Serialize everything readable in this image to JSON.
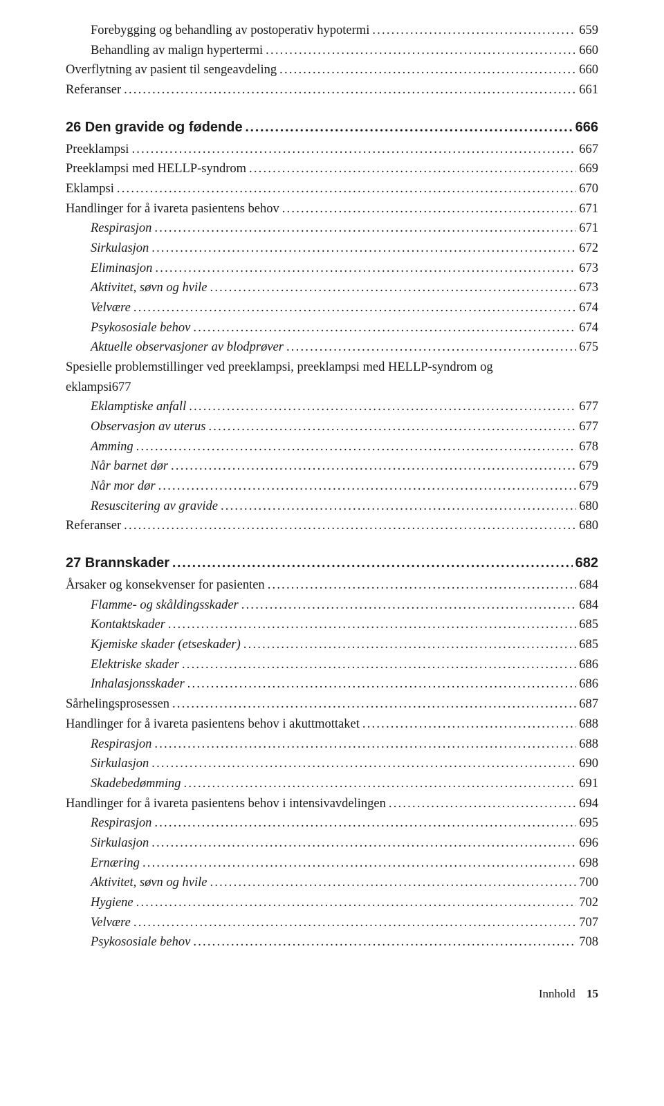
{
  "entries": [
    {
      "text": "Forebygging og behandling av postoperativ hypotermi",
      "page": "659",
      "level": 1,
      "italic": false
    },
    {
      "text": "Behandling av malign hypertermi",
      "page": "660",
      "level": 1,
      "italic": false
    },
    {
      "text": "Overflytning av pasient til sengeavdeling",
      "page": "660",
      "level": 0,
      "italic": false
    },
    {
      "text": "Referanser",
      "page": "661",
      "level": 0,
      "italic": false
    },
    {
      "text": "26 Den gravide og fødende",
      "page": "666",
      "level": 0,
      "chapter": true
    },
    {
      "text": "Preeklampsi",
      "page": "667",
      "level": 0,
      "italic": false
    },
    {
      "text": "Preeklampsi med HELLP-syndrom",
      "page": "669",
      "level": 0,
      "italic": false
    },
    {
      "text": "Eklampsi",
      "page": "670",
      "level": 0,
      "italic": false
    },
    {
      "text": "Handlinger for å ivareta pasientens behov",
      "page": "671",
      "level": 0,
      "italic": false
    },
    {
      "text": "Respirasjon",
      "page": "671",
      "level": 1,
      "italic": true
    },
    {
      "text": "Sirkulasjon",
      "page": "672",
      "level": 1,
      "italic": true
    },
    {
      "text": "Eliminasjon",
      "page": "673",
      "level": 1,
      "italic": true
    },
    {
      "text": "Aktivitet, søvn og hvile",
      "page": "673",
      "level": 1,
      "italic": true
    },
    {
      "text": "Velvære",
      "page": "674",
      "level": 1,
      "italic": true
    },
    {
      "text": "Psykososiale behov",
      "page": "674",
      "level": 1,
      "italic": true
    },
    {
      "text": "Aktuelle observasjoner av blodprøver",
      "page": "675",
      "level": 1,
      "italic": true
    },
    {
      "wrap": true,
      "first": "Spesielle problemstillinger ved preeklampsi, preeklampsi med HELLP-syndrom og",
      "second": "eklampsi",
      "page": "677",
      "level": 0
    },
    {
      "text": "Eklamptiske anfall",
      "page": "677",
      "level": 1,
      "italic": true
    },
    {
      "text": "Observasjon av uterus",
      "page": "677",
      "level": 1,
      "italic": true
    },
    {
      "text": "Amming",
      "page": "678",
      "level": 1,
      "italic": true
    },
    {
      "text": "Når barnet dør",
      "page": "679",
      "level": 1,
      "italic": true
    },
    {
      "text": "Når mor dør",
      "page": "679",
      "level": 1,
      "italic": true
    },
    {
      "text": "Resuscitering av gravide",
      "page": "680",
      "level": 1,
      "italic": true
    },
    {
      "text": "Referanser",
      "page": "680",
      "level": 0,
      "italic": false
    },
    {
      "text": "27 Brannskader",
      "page": "682",
      "level": 0,
      "chapter": true
    },
    {
      "text": "Årsaker og konsekvenser for pasienten",
      "page": "684",
      "level": 0,
      "italic": false
    },
    {
      "text": "Flamme- og skåldingsskader",
      "page": "684",
      "level": 1,
      "italic": true
    },
    {
      "text": "Kontaktskader",
      "page": "685",
      "level": 1,
      "italic": true
    },
    {
      "text": "Kjemiske skader (etseskader)",
      "page": "685",
      "level": 1,
      "italic": true
    },
    {
      "text": "Elektriske skader",
      "page": "686",
      "level": 1,
      "italic": true
    },
    {
      "text": "Inhalasjonsskader",
      "page": "686",
      "level": 1,
      "italic": true
    },
    {
      "text": "Sårhelingsprosessen",
      "page": "687",
      "level": 0,
      "italic": false
    },
    {
      "text": "Handlinger for å ivareta pasientens behov i akuttmottaket",
      "page": "688",
      "level": 0,
      "italic": false
    },
    {
      "text": "Respirasjon",
      "page": "688",
      "level": 1,
      "italic": true
    },
    {
      "text": "Sirkulasjon",
      "page": "690",
      "level": 1,
      "italic": true
    },
    {
      "text": "Skadebedømming",
      "page": "691",
      "level": 1,
      "italic": true
    },
    {
      "text": "Handlinger for å ivareta pasientens behov i intensivavdelingen",
      "page": "694",
      "level": 0,
      "italic": false
    },
    {
      "text": "Respirasjon",
      "page": "695",
      "level": 1,
      "italic": true
    },
    {
      "text": "Sirkulasjon",
      "page": "696",
      "level": 1,
      "italic": true
    },
    {
      "text": "Ernæring",
      "page": "698",
      "level": 1,
      "italic": true
    },
    {
      "text": "Aktivitet, søvn og hvile",
      "page": "700",
      "level": 1,
      "italic": true
    },
    {
      "text": "Hygiene",
      "page": "702",
      "level": 1,
      "italic": true
    },
    {
      "text": "Velvære",
      "page": "707",
      "level": 1,
      "italic": true
    },
    {
      "text": "Psykososiale behov",
      "page": "708",
      "level": 1,
      "italic": true
    }
  ],
  "footer": {
    "label": "Innhold",
    "page": "15"
  }
}
